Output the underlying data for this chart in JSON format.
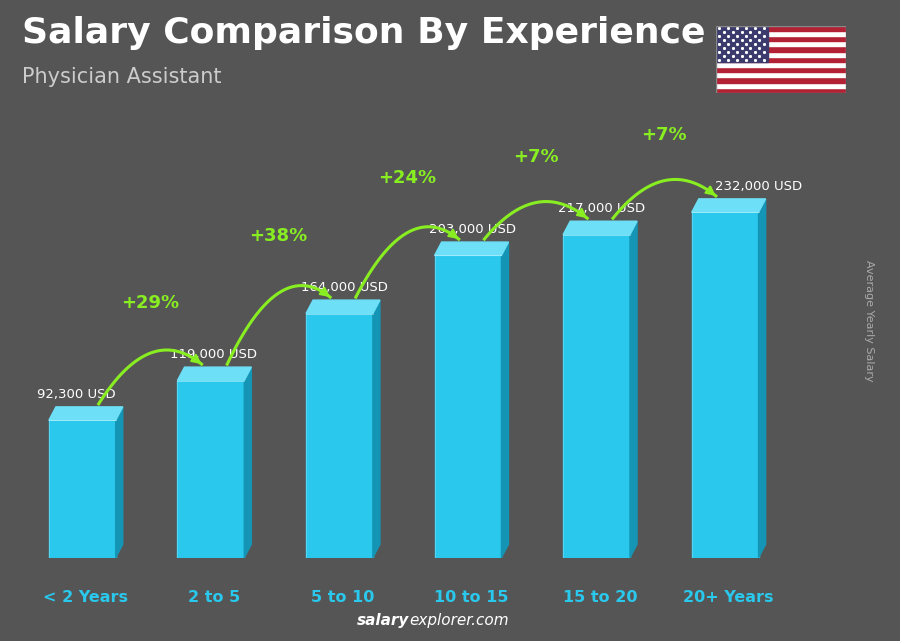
{
  "title": "Salary Comparison By Experience",
  "subtitle": "Physician Assistant",
  "categories": [
    "< 2 Years",
    "2 to 5",
    "5 to 10",
    "10 to 15",
    "15 to 20",
    "20+ Years"
  ],
  "values": [
    92300,
    119000,
    164000,
    203000,
    217000,
    232000
  ],
  "labels": [
    "92,300 USD",
    "119,000 USD",
    "164,000 USD",
    "203,000 USD",
    "217,000 USD",
    "232,000 USD"
  ],
  "pct_changes": [
    "+29%",
    "+38%",
    "+24%",
    "+7%",
    "+7%"
  ],
  "face_color": "#29c8ec",
  "side_color": "#1595b5",
  "top_color": "#6de0f8",
  "bg_color": "#555555",
  "pct_color": "#88ee22",
  "label_color": "#ffffff",
  "cat_color": "#29c8ec",
  "ylabel": "Average Yearly Salary",
  "footer_salary": "salary",
  "footer_explorer": "explorer",
  "footer_com": ".com"
}
